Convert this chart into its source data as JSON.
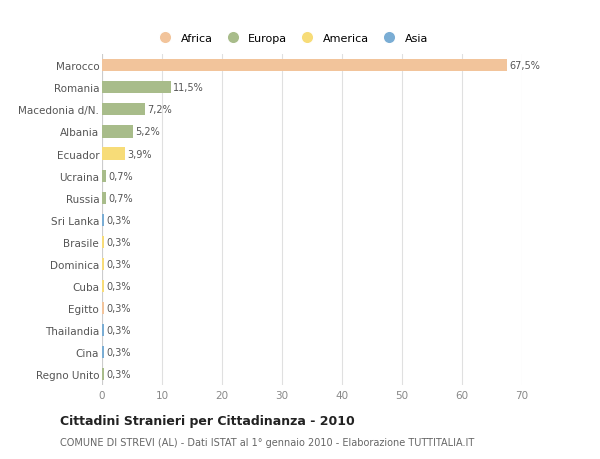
{
  "countries": [
    "Marocco",
    "Romania",
    "Macedonia d/N.",
    "Albania",
    "Ecuador",
    "Ucraina",
    "Russia",
    "Sri Lanka",
    "Brasile",
    "Dominica",
    "Cuba",
    "Egitto",
    "Thailandia",
    "Cina",
    "Regno Unito"
  ],
  "values": [
    67.5,
    11.5,
    7.2,
    5.2,
    3.9,
    0.7,
    0.7,
    0.3,
    0.3,
    0.3,
    0.3,
    0.3,
    0.3,
    0.3,
    0.3
  ],
  "labels": [
    "67,5%",
    "11,5%",
    "7,2%",
    "5,2%",
    "3,9%",
    "0,7%",
    "0,7%",
    "0,3%",
    "0,3%",
    "0,3%",
    "0,3%",
    "0,3%",
    "0,3%",
    "0,3%",
    "0,3%"
  ],
  "colors": [
    "#F2C49B",
    "#A8BC8A",
    "#A8BC8A",
    "#A8BC8A",
    "#F7DC78",
    "#A8BC8A",
    "#A8BC8A",
    "#7AADD4",
    "#F7DC78",
    "#F7DC78",
    "#F7DC78",
    "#F2C49B",
    "#7AADD4",
    "#7AADD4",
    "#A8BC8A"
  ],
  "legend": [
    {
      "label": "Africa",
      "color": "#F2C49B"
    },
    {
      "label": "Europa",
      "color": "#A8BC8A"
    },
    {
      "label": "America",
      "color": "#F7DC78"
    },
    {
      "label": "Asia",
      "color": "#7AADD4"
    }
  ],
  "title": "Cittadini Stranieri per Cittadinanza - 2010",
  "subtitle": "COMUNE DI STREVI (AL) - Dati ISTAT al 1° gennaio 2010 - Elaborazione TUTTITALIA.IT",
  "xlim": [
    0,
    70
  ],
  "xticks": [
    0,
    10,
    20,
    30,
    40,
    50,
    60,
    70
  ],
  "bg_color": "#FFFFFF",
  "grid_color": "#E0E0E0",
  "bar_height": 0.55
}
